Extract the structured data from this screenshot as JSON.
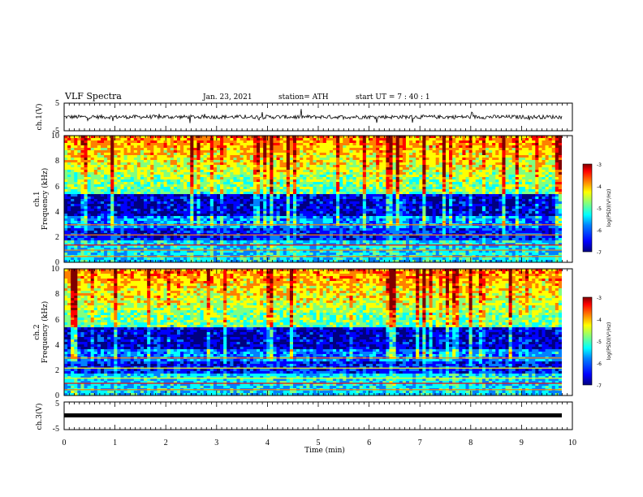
{
  "header": {
    "title": "VLF Spectra",
    "date": "Jan. 23, 2021",
    "station": "station= ATH",
    "start": "start  UT  =   7 : 40 : 1"
  },
  "colorbar_scale": [
    "#000080",
    "#0000ff",
    "#0080ff",
    "#00ffff",
    "#80ff80",
    "#ffff00",
    "#ff8000",
    "#ff0000",
    "#800000"
  ],
  "chart_data": [
    {
      "type": "line",
      "ylabel": "ch.1(V)",
      "ylim": [
        -5,
        5
      ],
      "yticks": [
        "5",
        "-5"
      ],
      "xlim": [
        0,
        10
      ],
      "description_level": 0
    },
    {
      "type": "heatmap",
      "ylabel": "ch.1\nFrequency  (kHz)",
      "ylabel_line1": "ch.1",
      "ylabel_line2": "Frequency  (kHz)",
      "ylim": [
        0,
        10
      ],
      "yticks": [
        "0",
        "2",
        "4",
        "6",
        "8",
        "10"
      ],
      "xlim": [
        0,
        10
      ],
      "colorbar": {
        "label": "log(PSD)(V²/Hz)",
        "ticks": [
          "-3",
          "-4",
          "-5",
          "-6",
          "-7"
        ],
        "range": [
          -7,
          -3
        ]
      }
    },
    {
      "type": "heatmap",
      "ylabel_line1": "ch.2",
      "ylabel_line2": "Frequency  (kHz)",
      "ylim": [
        0,
        10
      ],
      "yticks": [
        "0",
        "2",
        "4",
        "6",
        "8",
        "10"
      ],
      "xlim": [
        0,
        10
      ],
      "colorbar": {
        "label": "log(PSD)(V²/Hz)",
        "ticks": [
          "-3",
          "-4",
          "-5",
          "-6",
          "-7"
        ],
        "range": [
          -7,
          -3
        ]
      }
    },
    {
      "type": "line",
      "ylabel": "ch.3(V)",
      "ylim": [
        -5,
        5
      ],
      "yticks": [
        "5",
        "-5"
      ],
      "xlim": [
        0,
        10
      ],
      "level": 0
    }
  ],
  "xaxis": {
    "label": "Time  (min)",
    "ticks": [
      "0",
      "1",
      "2",
      "3",
      "4",
      "5",
      "6",
      "7",
      "8",
      "9",
      "10"
    ]
  }
}
